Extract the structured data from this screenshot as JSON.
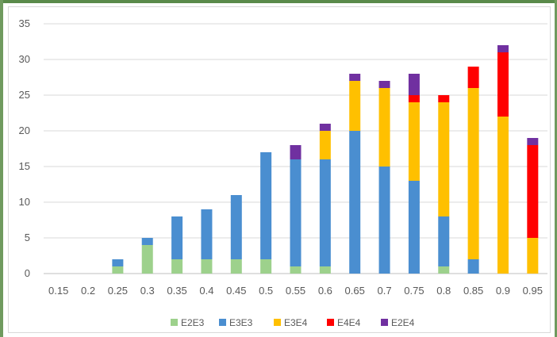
{
  "chart_data": {
    "type": "bar",
    "stacked": true,
    "title": "",
    "xlabel": "",
    "ylabel": "",
    "ylim": [
      0,
      35
    ],
    "yticks": [
      0,
      5,
      10,
      15,
      20,
      25,
      30,
      35
    ],
    "grid": true,
    "legend_position": "bottom",
    "categories": [
      "0.15",
      "0.2",
      "0.25",
      "0.3",
      "0.35",
      "0.4",
      "0.45",
      "0.5",
      "0.55",
      "0.6",
      "0.65",
      "0.7",
      "0.75",
      "0.8",
      "0.85",
      "0.9",
      "0.95"
    ],
    "series": [
      {
        "name": "E2E3",
        "color": "#9dd18c",
        "values": [
          0,
          0,
          1,
          4,
          2,
          2,
          2,
          2,
          1,
          1,
          0,
          0,
          0,
          1,
          0,
          0,
          0
        ]
      },
      {
        "name": "E3E3",
        "color": "#4a8ed0",
        "values": [
          0,
          0,
          1,
          1,
          6,
          7,
          9,
          15,
          15,
          15,
          20,
          15,
          13,
          7,
          2,
          0,
          0
        ]
      },
      {
        "name": "E3E4",
        "color": "#ffc000",
        "values": [
          0,
          0,
          0,
          0,
          0,
          0,
          0,
          0,
          0,
          4,
          7,
          11,
          11,
          16,
          24,
          22,
          5
        ]
      },
      {
        "name": "E4E4",
        "color": "#ff0000",
        "values": [
          0,
          0,
          0,
          0,
          0,
          0,
          0,
          0,
          0,
          0,
          0,
          0,
          1,
          1,
          3,
          9,
          13
        ]
      },
      {
        "name": "E2E4",
        "color": "#7030a0",
        "values": [
          0,
          0,
          0,
          0,
          0,
          0,
          0,
          0,
          2,
          1,
          1,
          1,
          3,
          0,
          0,
          1,
          1
        ]
      }
    ]
  }
}
